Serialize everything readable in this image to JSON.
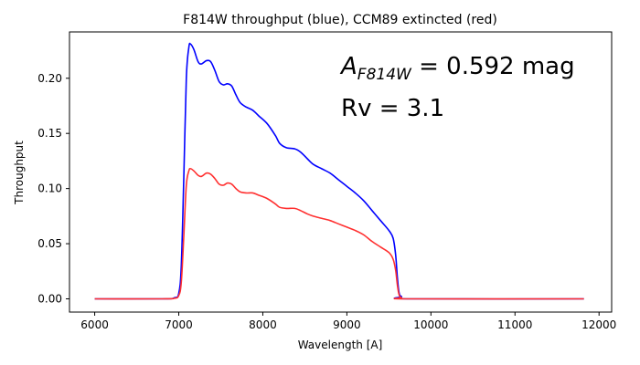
{
  "chart_data": {
    "type": "line",
    "title": "F814W throughput (blue), CCM89 extincted (red)",
    "xlabel": "Wavelength [A]",
    "ylabel": "Throughput",
    "xlim": [
      5700,
      12150
    ],
    "ylim": [
      -0.012,
      0.242
    ],
    "xticks": [
      6000,
      7000,
      8000,
      9000,
      10000,
      11000,
      12000
    ],
    "yticks": [
      0.0,
      0.05,
      0.1,
      0.15,
      0.2
    ],
    "xtick_labels": [
      "6000",
      "7000",
      "8000",
      "9000",
      "10000",
      "11000",
      "12000"
    ],
    "ytick_labels": [
      "0.00",
      "0.05",
      "0.10",
      "0.15",
      "0.20"
    ],
    "grid": false,
    "legend": "none",
    "annotations": {
      "a_symbol": "A",
      "a_subscript": "F814W",
      "a_value": " = 0.592 mag",
      "rv": "Rv = 3.1"
    },
    "series": [
      {
        "color": "#0000ff",
        "points": [
          [
            6000,
            0.0
          ],
          [
            6800,
            0.0
          ],
          [
            6950,
            0.001
          ],
          [
            7000,
            0.005
          ],
          [
            7030,
            0.03
          ],
          [
            7060,
            0.11
          ],
          [
            7090,
            0.2
          ],
          [
            7120,
            0.228
          ],
          [
            7140,
            0.231
          ],
          [
            7180,
            0.226
          ],
          [
            7230,
            0.215
          ],
          [
            7270,
            0.213
          ],
          [
            7330,
            0.216
          ],
          [
            7380,
            0.215
          ],
          [
            7430,
            0.207
          ],
          [
            7480,
            0.197
          ],
          [
            7530,
            0.194
          ],
          [
            7580,
            0.195
          ],
          [
            7630,
            0.193
          ],
          [
            7680,
            0.185
          ],
          [
            7730,
            0.178
          ],
          [
            7800,
            0.174
          ],
          [
            7880,
            0.171
          ],
          [
            7950,
            0.166
          ],
          [
            8050,
            0.159
          ],
          [
            8150,
            0.148
          ],
          [
            8200,
            0.141
          ],
          [
            8280,
            0.137
          ],
          [
            8380,
            0.136
          ],
          [
            8450,
            0.133
          ],
          [
            8530,
            0.127
          ],
          [
            8600,
            0.122
          ],
          [
            8700,
            0.118
          ],
          [
            8800,
            0.114
          ],
          [
            8900,
            0.108
          ],
          [
            9000,
            0.102
          ],
          [
            9100,
            0.096
          ],
          [
            9200,
            0.089
          ],
          [
            9300,
            0.08
          ],
          [
            9400,
            0.071
          ],
          [
            9500,
            0.062
          ],
          [
            9550,
            0.055
          ],
          [
            9580,
            0.04
          ],
          [
            9600,
            0.02
          ],
          [
            9620,
            0.006
          ],
          [
            9650,
            0.002
          ],
          [
            9750,
            0.0
          ],
          [
            11820,
            0.0
          ]
        ]
      },
      {
        "color": "#ff3030",
        "points": [
          [
            6000,
            0.0
          ],
          [
            6800,
            0.0
          ],
          [
            6950,
            0.0005
          ],
          [
            7000,
            0.003
          ],
          [
            7030,
            0.015
          ],
          [
            7060,
            0.057
          ],
          [
            7090,
            0.103
          ],
          [
            7120,
            0.116
          ],
          [
            7140,
            0.118
          ],
          [
            7180,
            0.116
          ],
          [
            7230,
            0.112
          ],
          [
            7270,
            0.111
          ],
          [
            7330,
            0.114
          ],
          [
            7380,
            0.113
          ],
          [
            7430,
            0.109
          ],
          [
            7480,
            0.104
          ],
          [
            7530,
            0.103
          ],
          [
            7580,
            0.105
          ],
          [
            7630,
            0.104
          ],
          [
            7680,
            0.1
          ],
          [
            7730,
            0.097
          ],
          [
            7800,
            0.096
          ],
          [
            7880,
            0.096
          ],
          [
            7950,
            0.094
          ],
          [
            8050,
            0.091
          ],
          [
            8150,
            0.086
          ],
          [
            8200,
            0.083
          ],
          [
            8280,
            0.082
          ],
          [
            8380,
            0.082
          ],
          [
            8450,
            0.08
          ],
          [
            8530,
            0.077
          ],
          [
            8600,
            0.075
          ],
          [
            8700,
            0.073
          ],
          [
            8800,
            0.071
          ],
          [
            8900,
            0.068
          ],
          [
            9000,
            0.065
          ],
          [
            9100,
            0.062
          ],
          [
            9200,
            0.058
          ],
          [
            9300,
            0.052
          ],
          [
            9400,
            0.047
          ],
          [
            9500,
            0.042
          ],
          [
            9550,
            0.036
          ],
          [
            9580,
            0.026
          ],
          [
            9600,
            0.013
          ],
          [
            9620,
            0.004
          ],
          [
            9650,
            0.001
          ],
          [
            9750,
            0.0
          ],
          [
            11820,
            0.0
          ]
        ]
      }
    ]
  }
}
